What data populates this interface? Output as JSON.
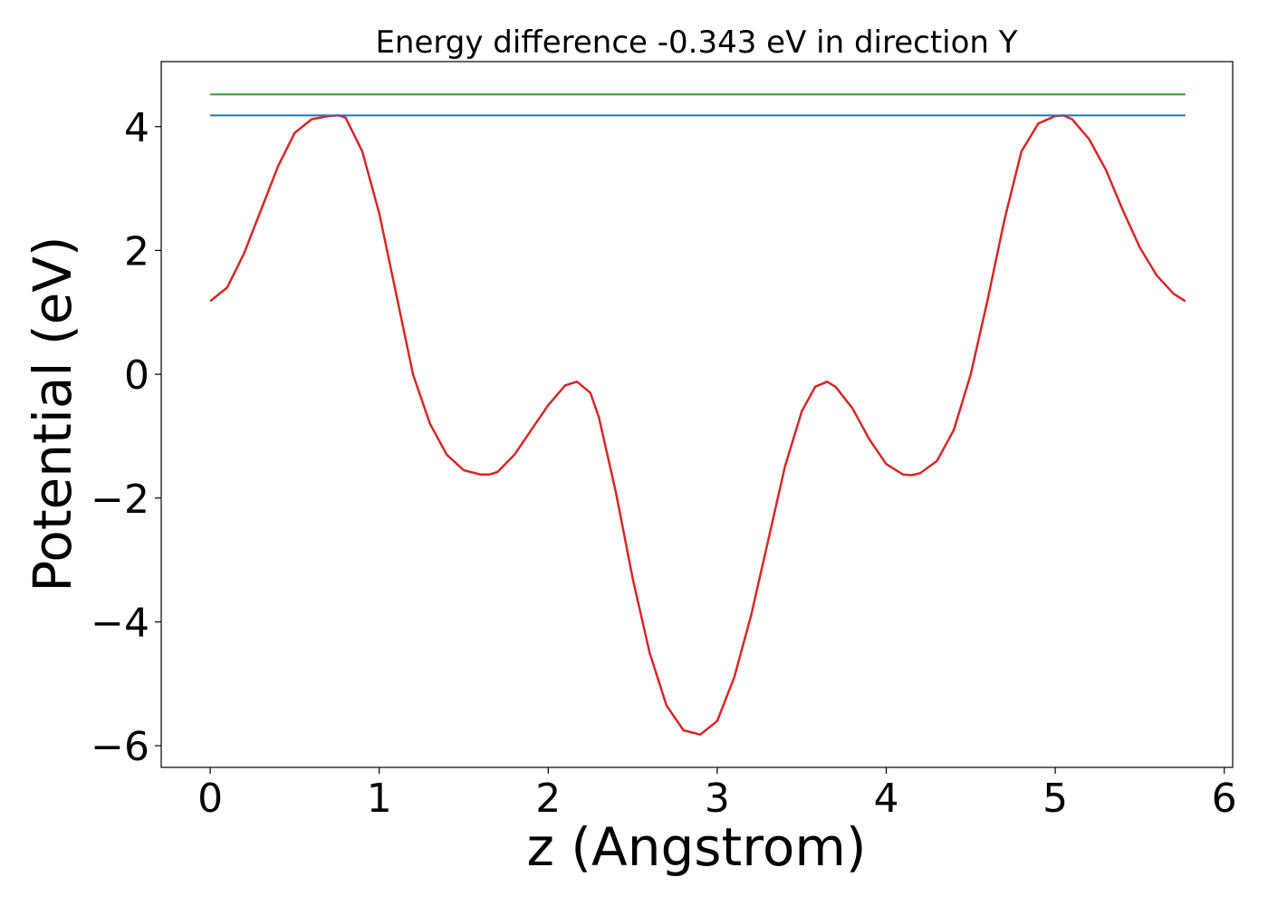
{
  "chart_data": {
    "type": "line",
    "title": "Energy difference -0.343 eV in direction Y",
    "xlabel": "z (Angstrom)",
    "ylabel": "Potential (eV)",
    "xlim": [
      -0.29,
      6.05
    ],
    "ylim": [
      -6.35,
      5.05
    ],
    "xticks": [
      0,
      1,
      2,
      3,
      4,
      5,
      6
    ],
    "xtick_labels": [
      "0",
      "1",
      "2",
      "3",
      "4",
      "5",
      "6"
    ],
    "yticks": [
      4,
      2,
      0,
      -2,
      -4,
      -6
    ],
    "ytick_labels": [
      "4",
      "2",
      "0",
      "−2",
      "−4",
      "−6"
    ],
    "grid": false,
    "series": [
      {
        "color": "#d62728",
        "x": [
          0,
          0.1,
          0.2,
          0.3,
          0.4,
          0.5,
          0.6,
          0.7,
          0.76,
          0.8,
          0.9,
          1.0,
          1.1,
          1.2,
          1.3,
          1.4,
          1.5,
          1.6,
          1.65,
          1.7,
          1.8,
          1.9,
          2.0,
          2.1,
          2.17,
          2.25,
          2.3,
          2.4,
          2.5,
          2.6,
          2.7,
          2.8,
          2.9,
          3.0,
          3.1,
          3.2,
          3.3,
          3.4,
          3.5,
          3.58,
          3.65,
          3.7,
          3.8,
          3.9,
          4.0,
          4.1,
          4.15,
          4.2,
          4.3,
          4.4,
          4.5,
          4.6,
          4.7,
          4.8,
          4.9,
          5.0,
          5.05,
          5.1,
          5.2,
          5.3,
          5.4,
          5.5,
          5.6,
          5.7,
          5.77
        ],
        "y": [
          1.18,
          1.4,
          1.95,
          2.65,
          3.35,
          3.9,
          4.12,
          4.17,
          4.18,
          4.15,
          3.6,
          2.6,
          1.3,
          0.0,
          -0.8,
          -1.3,
          -1.55,
          -1.62,
          -1.62,
          -1.58,
          -1.3,
          -0.9,
          -0.5,
          -0.18,
          -0.12,
          -0.3,
          -0.7,
          -1.9,
          -3.3,
          -4.5,
          -5.35,
          -5.75,
          -5.82,
          -5.6,
          -4.9,
          -3.9,
          -2.7,
          -1.5,
          -0.6,
          -0.2,
          -0.12,
          -0.2,
          -0.55,
          -1.05,
          -1.45,
          -1.62,
          -1.63,
          -1.6,
          -1.4,
          -0.9,
          0.0,
          1.2,
          2.5,
          3.6,
          4.05,
          4.17,
          4.18,
          4.12,
          3.8,
          3.3,
          2.65,
          2.05,
          1.6,
          1.3,
          1.18
        ]
      },
      {
        "color": "#1f77b4",
        "x": [
          0,
          5.77
        ],
        "y": [
          4.18,
          4.18
        ]
      },
      {
        "color": "#2ca02c",
        "x": [
          0,
          5.77
        ],
        "y": [
          4.52,
          4.52
        ]
      }
    ]
  }
}
